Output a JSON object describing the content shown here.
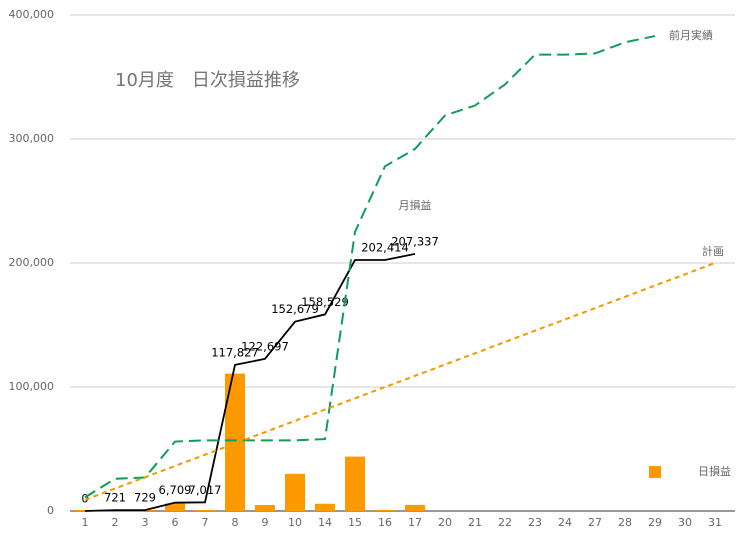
{
  "chart_data": {
    "type": "combo",
    "title": "10月度　日次損益推移",
    "categories": [
      "1",
      "2",
      "3",
      "6",
      "7",
      "8",
      "9",
      "10",
      "14",
      "15",
      "16",
      "17",
      "20",
      "21",
      "22",
      "23",
      "24",
      "27",
      "28",
      "29",
      "30",
      "31"
    ],
    "ylim": [
      0,
      400000
    ],
    "yticks": [
      0,
      {
        "value": 100000,
        "label": "100,000"
      },
      {
        "value": 200000,
        "label": "200,000"
      },
      {
        "value": 300000,
        "label": "300,000"
      },
      {
        "value": 400000,
        "label": "400,000"
      }
    ],
    "grid": true,
    "legend": "right",
    "series": [
      {
        "name": "日損益",
        "type": "bar",
        "color": "#ff9900",
        "values": [
          0,
          721,
          8,
          5980,
          308,
          110810,
          4870,
          29982,
          5850,
          43885,
          0,
          4923,
          null,
          null,
          null,
          null,
          null,
          null,
          null,
          null,
          null,
          null
        ]
      },
      {
        "name": "月損益",
        "type": "line",
        "color": "#000000",
        "values": [
          0,
          721,
          729,
          6709,
          7017,
          117827,
          122697,
          152679,
          158529,
          202414,
          202414,
          207337,
          null,
          null,
          null,
          null,
          null,
          null,
          null,
          null,
          null,
          null
        ],
        "value_labels": [
          "0",
          "721",
          "729",
          "6,709",
          "7,017",
          "117,827",
          "122,697",
          "152,679",
          "158,529",
          null,
          "202,414",
          "207,337",
          null,
          null,
          null,
          null,
          null,
          null,
          null,
          null,
          null,
          null
        ]
      },
      {
        "name": "前月実績",
        "type": "line",
        "color": "#0f9d58",
        "dash": "12,6",
        "values": [
          11000,
          26000,
          27000,
          56000,
          57000,
          57000,
          57000,
          57000,
          58000,
          225000,
          278000,
          292000,
          319000,
          327000,
          344000,
          368000,
          368000,
          369000,
          378000,
          383000,
          null,
          null
        ]
      },
      {
        "name": "計画",
        "type": "line",
        "color": "#f29900",
        "dash": "5,4",
        "values": [
          9000,
          18100,
          27200,
          36300,
          45400,
          54500,
          63600,
          72700,
          81800,
          90900,
          100000,
          109000,
          118100,
          127200,
          136300,
          145400,
          154500,
          163600,
          172700,
          181800,
          190900,
          200000
        ]
      }
    ]
  }
}
